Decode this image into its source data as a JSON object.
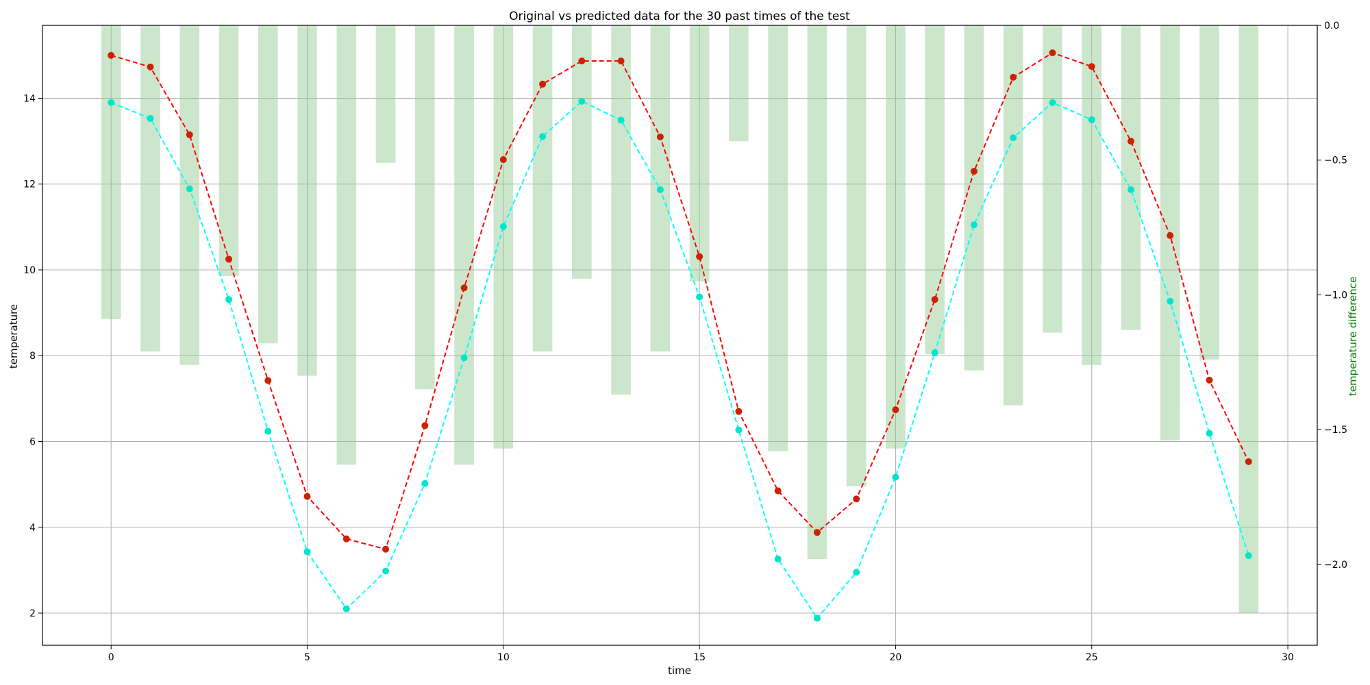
{
  "chart_data": {
    "type": "line",
    "title": "Original vs predicted data for the 30 past times of the test",
    "xlabel": "time",
    "ylabel": "temperature",
    "y2label": "temperature difference",
    "xlim": [
      -1.75,
      30.75
    ],
    "ylim": [
      1.25,
      15.7
    ],
    "y2lim": [
      -2.3,
      0.0
    ],
    "xticks": [
      0,
      5,
      10,
      15,
      20,
      25,
      30
    ],
    "yticks": [
      2,
      4,
      6,
      8,
      10,
      12,
      14
    ],
    "y2ticks": [
      0.0,
      -0.5,
      -1.0,
      -1.5,
      -2.0
    ],
    "grid": true,
    "colors": {
      "original": "#ff0000",
      "original_marker": "#cc2200",
      "predicted": "#00ffff",
      "predicted_marker": "#00e5cc",
      "difference": "#8fc78f",
      "y2label": "#008000"
    },
    "x": [
      0,
      1,
      2,
      3,
      4,
      5,
      6,
      7,
      8,
      9,
      10,
      11,
      12,
      13,
      14,
      15,
      16,
      17,
      18,
      19,
      20,
      21,
      22,
      23,
      24,
      25,
      26,
      27,
      28,
      29
    ],
    "series": [
      {
        "values": [
          15.0,
          14.73,
          13.15,
          10.25,
          7.42,
          4.72,
          3.73,
          3.49,
          6.37,
          9.58,
          12.57,
          14.33,
          14.87,
          14.87,
          13.1,
          10.31,
          6.7,
          4.85,
          3.88,
          4.66,
          6.74,
          9.31,
          12.3,
          14.49,
          15.06,
          14.74,
          13.0,
          10.8,
          7.43,
          5.53
        ]
      },
      {
        "values": [
          13.9,
          13.53,
          11.89,
          9.31,
          6.24,
          3.43,
          2.1,
          2.98,
          5.02,
          7.95,
          11.01,
          13.11,
          13.93,
          13.49,
          11.87,
          9.37,
          6.27,
          3.26,
          1.88,
          2.95,
          5.17,
          8.07,
          11.05,
          13.08,
          13.9,
          13.5,
          11.87,
          9.27,
          6.19,
          3.34
        ]
      },
      {
        "axis": "right",
        "type": "bar",
        "values": [
          -1.09,
          -1.21,
          -1.26,
          -0.93,
          -1.18,
          -1.3,
          -1.63,
          -0.51,
          -1.35,
          -1.63,
          -1.57,
          -1.21,
          -0.94,
          -1.37,
          -1.21,
          -0.95,
          -0.43,
          -1.58,
          -1.98,
          -1.71,
          -1.57,
          -1.22,
          -1.28,
          -1.41,
          -1.14,
          -1.26,
          -1.13,
          -1.54,
          -1.24,
          -2.18
        ]
      }
    ]
  }
}
